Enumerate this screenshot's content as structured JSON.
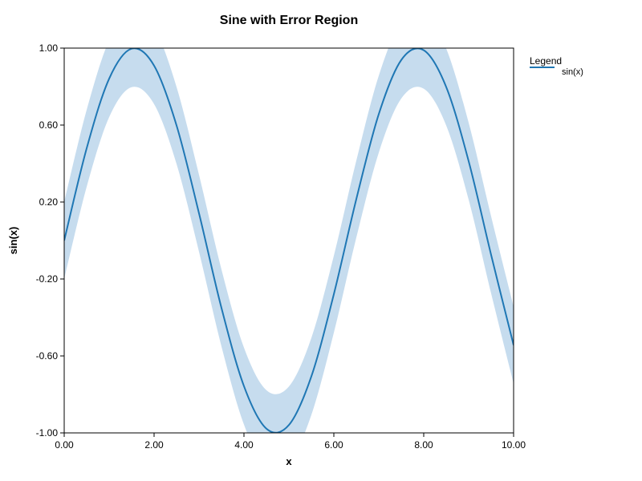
{
  "chart_data": {
    "type": "line",
    "title": "Sine with Error Region",
    "xlabel": "x",
    "ylabel": "sin(x)",
    "xlim": [
      0,
      10
    ],
    "ylim": [
      -1,
      1
    ],
    "xticks": [
      "0.00",
      "2.00",
      "4.00",
      "6.00",
      "8.00",
      "10.00"
    ],
    "yticks": [
      "-1.00",
      "-0.60",
      "-0.20",
      "0.20",
      "0.60",
      "1.00"
    ],
    "grid": false,
    "legend": {
      "title": "Legend",
      "placement": "right"
    },
    "series": [
      {
        "name": "sin(x)",
        "color": "#1f77b4",
        "x": [
          0,
          0.5,
          1,
          1.5,
          2,
          2.5,
          3,
          3.5,
          4,
          4.5,
          5,
          5.5,
          6,
          6.5,
          7,
          7.5,
          8,
          8.5,
          9,
          9.5,
          10
        ],
        "y": [
          0.0,
          0.479,
          0.841,
          0.997,
          0.909,
          0.598,
          0.141,
          -0.351,
          -0.757,
          -0.978,
          -0.959,
          -0.706,
          -0.279,
          0.215,
          0.657,
          0.938,
          0.989,
          0.798,
          0.412,
          -0.075,
          -0.544
        ],
        "band_lower": [
          -0.2,
          0.279,
          0.641,
          0.797,
          0.709,
          0.398,
          -0.059,
          -0.551,
          -0.957,
          -1.178,
          -1.159,
          -0.906,
          -0.479,
          0.015,
          0.457,
          0.738,
          0.789,
          0.598,
          0.212,
          -0.275,
          -0.744
        ],
        "band_upper": [
          0.2,
          0.679,
          1.041,
          1.197,
          1.109,
          0.798,
          0.341,
          -0.151,
          -0.557,
          -0.778,
          -0.759,
          -0.506,
          -0.079,
          0.415,
          0.857,
          1.138,
          1.189,
          0.998,
          0.612,
          0.125,
          -0.344
        ],
        "band_color": "#c6dcee"
      }
    ]
  }
}
